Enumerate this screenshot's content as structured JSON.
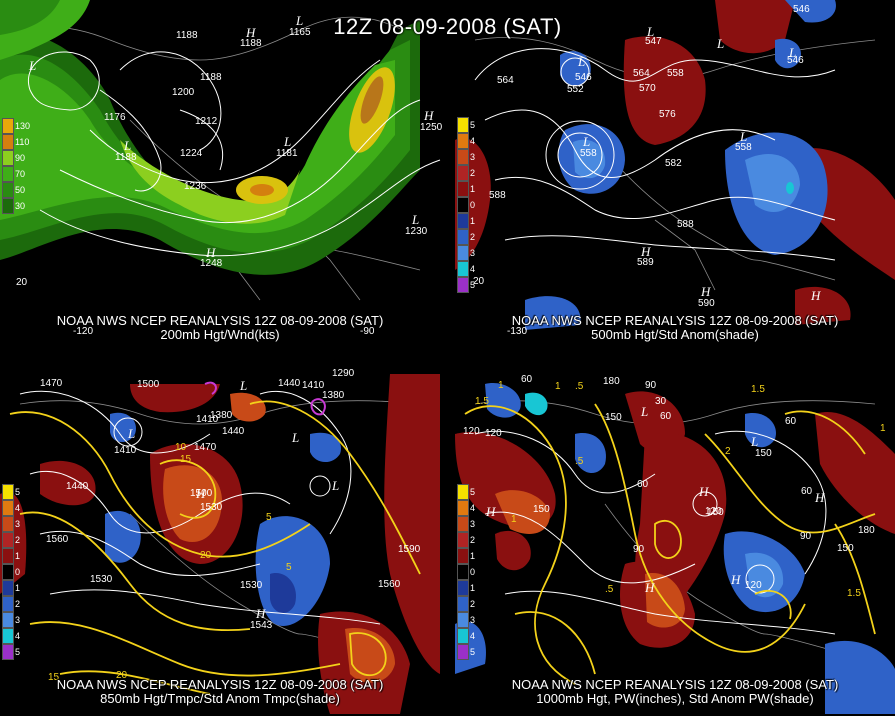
{
  "title": "12Z 08-09-2008 (SAT)",
  "panels": [
    {
      "caption1": "NOAA NWS NCEP REANALYSIS 12Z 08-09-2008 (SAT)",
      "caption2": "200mb Hgt/Wnd(kts)",
      "legend": [
        {
          "label": "130",
          "color": "#e8a80a"
        },
        {
          "label": "110",
          "color": "#d47f0f"
        },
        {
          "label": "90",
          "color": "#8ccf1f"
        },
        {
          "label": "70",
          "color": "#3fae18"
        },
        {
          "label": "50",
          "color": "#2a8c12"
        },
        {
          "label": "30",
          "color": "#1c6a0c"
        }
      ],
      "contour_labels": [
        "1176",
        "1188",
        "1188",
        "1200",
        "1212",
        "1224",
        "1236",
        "1188",
        "1248",
        "1188",
        "1181",
        "1165",
        "1250",
        "1230"
      ],
      "hl_labels": [
        "L",
        "H",
        "L",
        "L",
        "H",
        "L",
        "L",
        "H"
      ],
      "axis_labels": [
        "-120",
        "20",
        "-90"
      ]
    },
    {
      "caption1": "NOAA NWS NCEP REANALYSIS 12Z 08-09-2008 (SAT)",
      "caption2": "500mb Hgt/Std Anom(shade)",
      "legend": [
        {
          "label": "5",
          "color": "#f5e000"
        },
        {
          "label": "4",
          "color": "#e07a10"
        },
        {
          "label": "3",
          "color": "#c84a18"
        },
        {
          "label": "2",
          "color": "#b02424"
        },
        {
          "label": "1",
          "color": "#8a1010"
        },
        {
          "label": "0",
          "color": "#000000"
        },
        {
          "label": "1",
          "color": "#1e3a9a"
        },
        {
          "label": "2",
          "color": "#2f62c8"
        },
        {
          "label": "3",
          "color": "#4a8ae0"
        },
        {
          "label": "4",
          "color": "#18c6d4"
        },
        {
          "label": "5",
          "color": "#9a30c8"
        }
      ],
      "contour_labels": [
        "564",
        "552",
        "546",
        "564",
        "558",
        "570",
        "576",
        "582",
        "558",
        "558",
        "588",
        "588",
        "589",
        "590",
        "546",
        "547",
        "546"
      ],
      "hl_labels": [
        "L",
        "L",
        "L",
        "L",
        "L",
        "H",
        "H",
        "H",
        "L"
      ],
      "axis_labels": [
        "-130",
        "20"
      ]
    },
    {
      "caption1": "NOAA NWS NCEP REANALYSIS 12Z 08-09-2008 (SAT)",
      "caption2": "850mb Hgt/Tmpc/Std Anom Tmpc(shade)",
      "contour_labels": [
        "1470",
        "1500",
        "1440",
        "1410",
        "1440",
        "1380",
        "1410",
        "1470",
        "1500",
        "1530",
        "1560",
        "1530",
        "1440",
        "1590",
        "1560",
        "1530",
        "1543",
        "1290",
        "1380",
        "1410"
      ],
      "temp_labels": [
        "10",
        "15",
        "20",
        "5",
        "20",
        "15",
        "5"
      ],
      "hl_labels": [
        "L",
        "L",
        "H",
        "L",
        "H",
        "L"
      ]
    },
    {
      "caption1": "NOAA NWS NCEP REANALYSIS 12Z 08-09-2008 (SAT)",
      "caption2": "1000mb Hgt, PW(inches), Std Anom PW(shade)",
      "contour_labels": [
        "120",
        "60",
        "180",
        "90",
        "150",
        "60",
        "120",
        "150",
        "90",
        "120",
        "150",
        "60",
        "180",
        "150",
        "60",
        "90",
        "60",
        "30",
        "120",
        "150"
      ],
      "pw_labels": [
        "1",
        "1.5",
        "1",
        ".5",
        "1.5",
        "2",
        "1",
        ".5",
        "1.5",
        "1",
        ".5"
      ],
      "hl_labels": [
        "H",
        "L",
        "H",
        "H",
        "H",
        "L",
        "H"
      ]
    }
  ]
}
